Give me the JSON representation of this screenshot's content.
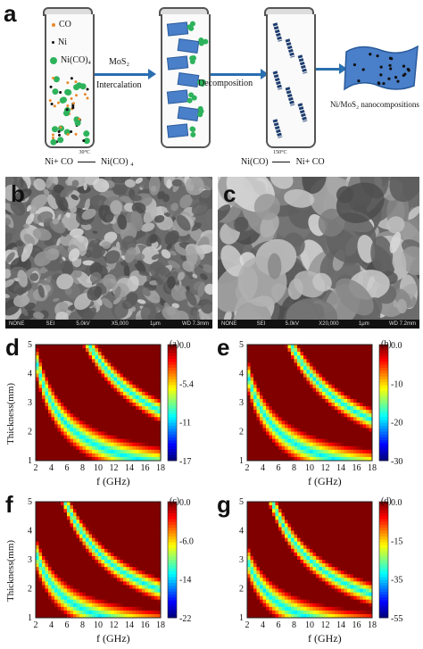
{
  "panel_a": {
    "letter": "a",
    "legend": [
      {
        "symbol": "orange-dot",
        "label": "CO",
        "color": "#e88a2c"
      },
      {
        "symbol": "black-dot",
        "label": "Ni",
        "color": "#111111"
      },
      {
        "symbol": "green-dot",
        "label": "Ni(CO)₄",
        "color": "#2db35b"
      }
    ],
    "arrow1_top": "MoS₂",
    "arrow1_bottom": "Intercalation",
    "arrow2_label": "Decomposition",
    "product_label": "Ni/MoS₂ nanocompositions",
    "eq1_left": "Ni+ CO",
    "eq1_cond": "30°C",
    "eq1_right": "Ni(CO) ₄",
    "eq2_left": "Ni(CO)",
    "eq2_cond": "150°C",
    "eq2_right": "Ni+ CO",
    "colors": {
      "blue_arrow": "#2a6fb0",
      "mos2": "#4a7fc9",
      "green": "#2db35b"
    }
  },
  "panel_b": {
    "letter": "b",
    "footer": [
      "NONE",
      "SEI",
      "5.0kV",
      "X5,000",
      "1μm",
      "WD 7.3mm"
    ]
  },
  "panel_c": {
    "letter": "c",
    "footer": [
      "NONE",
      "SEI",
      "5.0kV",
      "X20,000",
      "1μm",
      "WD 7.2mm"
    ]
  },
  "chart_data": [
    {
      "type": "heatmap",
      "panel": "d",
      "tag": "(a)",
      "xlabel": "f (GHz)",
      "ylabel": "Thickness(mm)",
      "xlim": [
        2,
        18
      ],
      "ylim": [
        1,
        5
      ],
      "xticks": [
        "2",
        "4",
        "6",
        "8",
        "10",
        "12",
        "14",
        "16",
        "18"
      ],
      "yticks": [
        "1",
        "2",
        "3",
        "4",
        "5"
      ],
      "colorbar": {
        "min": -17,
        "max": 0,
        "ticks": [
          "0.0",
          "-5.4",
          "-11",
          "-17"
        ]
      },
      "min_curve_k": 18
    },
    {
      "type": "heatmap",
      "panel": "e",
      "tag": "(b)",
      "xlabel": "f (GHz)",
      "ylabel": "",
      "xlim": [
        2,
        18
      ],
      "ylim": [
        1,
        5
      ],
      "xticks": [
        "2",
        "4",
        "6",
        "8",
        "10",
        "12",
        "14",
        "16",
        "18"
      ],
      "yticks": [
        "1",
        "2",
        "3",
        "4",
        "5"
      ],
      "colorbar": {
        "min": -30,
        "max": 0,
        "ticks": [
          "0.0",
          "-10",
          "-20",
          "-30"
        ]
      },
      "min_curve_k": 16
    },
    {
      "type": "heatmap",
      "panel": "f",
      "tag": "(c)",
      "xlabel": "f (GHz)",
      "ylabel": "Thickness(mm)",
      "xlim": [
        2,
        18
      ],
      "ylim": [
        1,
        5
      ],
      "xticks": [
        "2",
        "4",
        "6",
        "8",
        "10",
        "12",
        "14",
        "16",
        "18"
      ],
      "yticks": [
        "1",
        "2",
        "3",
        "4",
        "5"
      ],
      "colorbar": {
        "min": -22,
        "max": 0,
        "ticks": [
          "0.0",
          "-6.0",
          "-14",
          "-22"
        ]
      },
      "min_curve_k": 13
    },
    {
      "type": "heatmap",
      "panel": "g",
      "tag": "(d)",
      "xlabel": "f (GHz)",
      "ylabel": "",
      "xlim": [
        2,
        18
      ],
      "ylim": [
        1,
        5
      ],
      "xticks": [
        "2",
        "4",
        "6",
        "8",
        "10",
        "12",
        "14",
        "16",
        "18"
      ],
      "yticks": [
        "1",
        "2",
        "3",
        "4",
        "5"
      ],
      "colorbar": {
        "min": -55,
        "max": 0,
        "ticks": [
          "0.0",
          "-15",
          "-35",
          "-55"
        ]
      },
      "min_curve_k": 12
    }
  ]
}
